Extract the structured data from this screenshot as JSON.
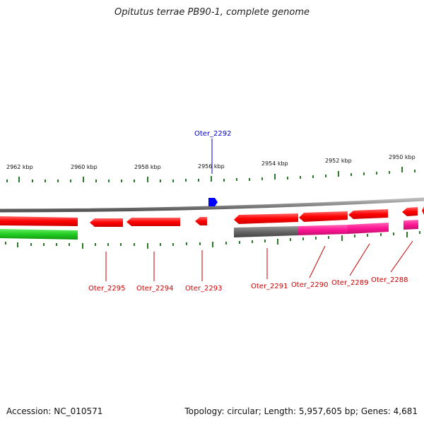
{
  "title": "Opitutus terrae PB90-1, complete genome",
  "footer": {
    "accession": "Accession: NC_010571",
    "summary": "Topology: circular; Length: 5,957,605 bp; Genes: 4,681"
  },
  "scale_labels": [
    "2962 kbp",
    "2960 kbp",
    "2958 kbp",
    "2956 kbp",
    "2954 kbp",
    "2952 kbp",
    "2950 kbp"
  ],
  "gene_labels": {
    "highlight": "Oter_2292",
    "lower": [
      "Oter_2295",
      "Oter_2294",
      "Oter_2293",
      "Oter_2291",
      "Oter_2290",
      "Oter_2289",
      "Oter_2288"
    ]
  },
  "colors": {
    "forward_gene": "#ff0000",
    "highlight_gene": "#0000ff",
    "cog_green": "#22cc22",
    "cog_grey": "#666666",
    "cog_pink": "#ff1493",
    "backbone": "#888888",
    "tick": "#2a7a2a",
    "label_red": "#cc0000",
    "label_blue": "#0000cc"
  }
}
